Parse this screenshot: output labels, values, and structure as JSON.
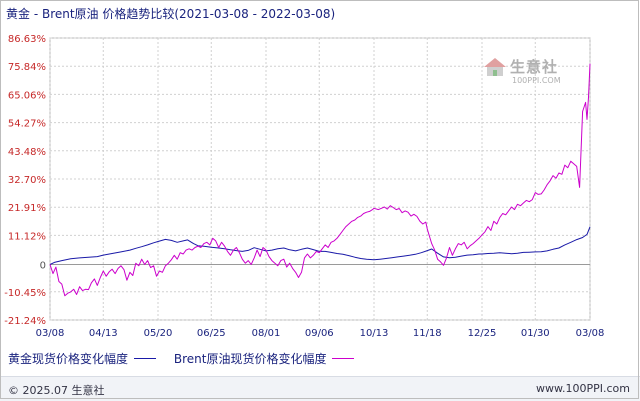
{
  "title": "黄金 - Brent原油 价格趋势比较(2021-03-08 - 2022-03-08)",
  "watermark": {
    "name": "生意社",
    "url": "100PPI.COM"
  },
  "footer": {
    "copyright": "© 2025.07 生意社",
    "website": "www.100PPI.com"
  },
  "chart_data": {
    "type": "line",
    "title": "黄金 - Brent原油 价格趋势比较(2021-03-08 - 2022-03-08)",
    "ylim": [
      -21.24,
      86.63
    ],
    "y_ticks": [
      "86.63%",
      "75.84%",
      "65.06%",
      "54.27%",
      "43.48%",
      "32.70%",
      "21.91%",
      "11.12%",
      "0",
      "-10.45%",
      "-21.24%"
    ],
    "y_tick_values": [
      86.63,
      75.84,
      65.06,
      54.27,
      43.48,
      32.7,
      21.91,
      11.12,
      0,
      -10.45,
      -21.24
    ],
    "x_ticks": [
      "03/08",
      "04/13",
      "05/20",
      "06/25",
      "08/01",
      "09/06",
      "10/13",
      "11/18",
      "12/25",
      "01/30",
      "03/08"
    ],
    "x_tick_days": [
      0,
      36,
      73,
      109,
      146,
      182,
      219,
      255,
      292,
      328,
      365
    ],
    "grid": true,
    "legend_position": "bottom",
    "series": [
      {
        "name": "黄金现货价格变化幅度",
        "color": "#1a1aa8",
        "points": [
          [
            0,
            0
          ],
          [
            3,
            0.8
          ],
          [
            8,
            1.5
          ],
          [
            14,
            2.2
          ],
          [
            20,
            2.5
          ],
          [
            26,
            2.8
          ],
          [
            32,
            3.0
          ],
          [
            36,
            3.6
          ],
          [
            42,
            4.2
          ],
          [
            48,
            4.8
          ],
          [
            54,
            5.5
          ],
          [
            58,
            6.2
          ],
          [
            62,
            6.8
          ],
          [
            66,
            7.5
          ],
          [
            70,
            8.3
          ],
          [
            73,
            8.8
          ],
          [
            78,
            9.6
          ],
          [
            82,
            9.2
          ],
          [
            86,
            8.5
          ],
          [
            90,
            9.0
          ],
          [
            93,
            9.4
          ],
          [
            97,
            8.0
          ],
          [
            100,
            7.2
          ],
          [
            104,
            7.0
          ],
          [
            109,
            6.6
          ],
          [
            114,
            6.3
          ],
          [
            118,
            6.0
          ],
          [
            122,
            5.6
          ],
          [
            126,
            5.3
          ],
          [
            130,
            5.0
          ],
          [
            134,
            5.4
          ],
          [
            138,
            6.4
          ],
          [
            142,
            5.8
          ],
          [
            146,
            5.2
          ],
          [
            150,
            5.5
          ],
          [
            154,
            6.0
          ],
          [
            158,
            6.3
          ],
          [
            162,
            5.6
          ],
          [
            166,
            5.2
          ],
          [
            170,
            5.8
          ],
          [
            174,
            6.3
          ],
          [
            178,
            5.7
          ],
          [
            182,
            5.0
          ],
          [
            186,
            5.0
          ],
          [
            190,
            4.6
          ],
          [
            194,
            4.2
          ],
          [
            198,
            3.9
          ],
          [
            202,
            3.4
          ],
          [
            206,
            2.8
          ],
          [
            210,
            2.3
          ],
          [
            214,
            2.0
          ],
          [
            219,
            1.8
          ],
          [
            223,
            2.0
          ],
          [
            227,
            2.3
          ],
          [
            231,
            2.6
          ],
          [
            235,
            2.9
          ],
          [
            239,
            3.2
          ],
          [
            243,
            3.5
          ],
          [
            247,
            3.9
          ],
          [
            251,
            4.5
          ],
          [
            255,
            5.3
          ],
          [
            258,
            5.9
          ],
          [
            262,
            4.3
          ],
          [
            266,
            2.9
          ],
          [
            270,
            2.6
          ],
          [
            274,
            2.8
          ],
          [
            278,
            3.2
          ],
          [
            282,
            3.6
          ],
          [
            286,
            3.7
          ],
          [
            290,
            4.0
          ],
          [
            292,
            4.0
          ],
          [
            296,
            4.2
          ],
          [
            300,
            4.3
          ],
          [
            304,
            4.5
          ],
          [
            308,
            4.3
          ],
          [
            312,
            4.1
          ],
          [
            316,
            4.3
          ],
          [
            320,
            4.6
          ],
          [
            324,
            4.7
          ],
          [
            328,
            4.8
          ],
          [
            332,
            4.9
          ],
          [
            336,
            5.2
          ],
          [
            340,
            5.8
          ],
          [
            344,
            6.3
          ],
          [
            348,
            7.5
          ],
          [
            352,
            8.5
          ],
          [
            356,
            9.5
          ],
          [
            360,
            10.3
          ],
          [
            363,
            11.5
          ],
          [
            365,
            14.4
          ]
        ]
      },
      {
        "name": "Brent原油现货价格变化幅度",
        "color": "#cc00cc",
        "points": [
          [
            0,
            0
          ],
          [
            2,
            -3.5
          ],
          [
            4,
            -1.0
          ],
          [
            6,
            -6.5
          ],
          [
            8,
            -7.5
          ],
          [
            10,
            -12.0
          ],
          [
            12,
            -11.0
          ],
          [
            14,
            -10.5
          ],
          [
            16,
            -9.5
          ],
          [
            18,
            -11.5
          ],
          [
            20,
            -8.5
          ],
          [
            22,
            -10.0
          ],
          [
            24,
            -9.5
          ],
          [
            26,
            -9.6
          ],
          [
            28,
            -7.0
          ],
          [
            30,
            -5.5
          ],
          [
            32,
            -8.0
          ],
          [
            34,
            -5.0
          ],
          [
            36,
            -2.5
          ],
          [
            38,
            -4.5
          ],
          [
            40,
            -2.8
          ],
          [
            42,
            -1.8
          ],
          [
            44,
            -3.5
          ],
          [
            46,
            -1.5
          ],
          [
            48,
            -0.5
          ],
          [
            50,
            -2.0
          ],
          [
            52,
            -6.0
          ],
          [
            54,
            -3.0
          ],
          [
            56,
            -4.2
          ],
          [
            58,
            0.5
          ],
          [
            60,
            -0.5
          ],
          [
            62,
            2.0
          ],
          [
            64,
            0.0
          ],
          [
            66,
            1.5
          ],
          [
            68,
            -1.2
          ],
          [
            70,
            -0.5
          ],
          [
            72,
            -4.5
          ],
          [
            74,
            -2.5
          ],
          [
            76,
            -3.0
          ],
          [
            78,
            -0.5
          ],
          [
            80,
            0.5
          ],
          [
            82,
            1.8
          ],
          [
            84,
            3.5
          ],
          [
            86,
            2.0
          ],
          [
            88,
            4.5
          ],
          [
            90,
            4.0
          ],
          [
            92,
            5.5
          ],
          [
            94,
            6.0
          ],
          [
            96,
            5.5
          ],
          [
            98,
            6.5
          ],
          [
            100,
            7.0
          ],
          [
            102,
            6.5
          ],
          [
            104,
            8.0
          ],
          [
            106,
            8.5
          ],
          [
            108,
            7.5
          ],
          [
            110,
            10.0
          ],
          [
            112,
            9.0
          ],
          [
            114,
            6.5
          ],
          [
            116,
            8.5
          ],
          [
            118,
            7.0
          ],
          [
            120,
            5.0
          ],
          [
            122,
            3.5
          ],
          [
            124,
            5.5
          ],
          [
            126,
            6.5
          ],
          [
            128,
            4.5
          ],
          [
            130,
            2.0
          ],
          [
            132,
            0.5
          ],
          [
            134,
            1.5
          ],
          [
            136,
            0.0
          ],
          [
            138,
            2.5
          ],
          [
            140,
            5.5
          ],
          [
            142,
            3.0
          ],
          [
            144,
            6.5
          ],
          [
            146,
            5.5
          ],
          [
            148,
            3.0
          ],
          [
            150,
            1.5
          ],
          [
            152,
            0.5
          ],
          [
            154,
            -0.5
          ],
          [
            156,
            1.5
          ],
          [
            158,
            2.0
          ],
          [
            160,
            -1.0
          ],
          [
            162,
            0.5
          ],
          [
            164,
            -1.5
          ],
          [
            166,
            -3.0
          ],
          [
            168,
            -5.0
          ],
          [
            170,
            -3.0
          ],
          [
            172,
            2.5
          ],
          [
            174,
            4.0
          ],
          [
            176,
            2.5
          ],
          [
            178,
            3.5
          ],
          [
            180,
            5.0
          ],
          [
            182,
            4.5
          ],
          [
            184,
            6.0
          ],
          [
            186,
            7.5
          ],
          [
            188,
            6.5
          ],
          [
            190,
            8.5
          ],
          [
            192,
            9.0
          ],
          [
            194,
            10.0
          ],
          [
            196,
            11.5
          ],
          [
            198,
            13.0
          ],
          [
            200,
            14.5
          ],
          [
            202,
            15.5
          ],
          [
            204,
            16.5
          ],
          [
            206,
            17.0
          ],
          [
            208,
            18.0
          ],
          [
            210,
            18.5
          ],
          [
            212,
            19.5
          ],
          [
            214,
            20.0
          ],
          [
            216,
            20.3
          ],
          [
            218,
            21.0
          ],
          [
            219,
            21.5
          ],
          [
            222,
            21.0
          ],
          [
            224,
            21.5
          ],
          [
            226,
            22.0
          ],
          [
            228,
            21.2
          ],
          [
            230,
            22.5
          ],
          [
            232,
            21.8
          ],
          [
            234,
            21.0
          ],
          [
            236,
            21.4
          ],
          [
            238,
            19.8
          ],
          [
            240,
            20.5
          ],
          [
            242,
            20.0
          ],
          [
            244,
            18.5
          ],
          [
            246,
            19.2
          ],
          [
            248,
            18.4
          ],
          [
            250,
            16.5
          ],
          [
            252,
            15.5
          ],
          [
            254,
            16.2
          ],
          [
            255,
            13.5
          ],
          [
            258,
            8.0
          ],
          [
            260,
            5.5
          ],
          [
            262,
            2.0
          ],
          [
            264,
            1.0
          ],
          [
            266,
            -0.3
          ],
          [
            268,
            2.5
          ],
          [
            270,
            6.5
          ],
          [
            272,
            3.5
          ],
          [
            274,
            6.0
          ],
          [
            276,
            8.0
          ],
          [
            278,
            7.5
          ],
          [
            280,
            8.5
          ],
          [
            282,
            6.0
          ],
          [
            284,
            7.2
          ],
          [
            286,
            8.0
          ],
          [
            288,
            9.0
          ],
          [
            290,
            10.0
          ],
          [
            292,
            11.3
          ],
          [
            294,
            12.5
          ],
          [
            296,
            14.5
          ],
          [
            298,
            13.0
          ],
          [
            300,
            16.5
          ],
          [
            302,
            15.5
          ],
          [
            304,
            18.0
          ],
          [
            306,
            19.5
          ],
          [
            308,
            19.0
          ],
          [
            310,
            20.5
          ],
          [
            312,
            22.0
          ],
          [
            314,
            21.0
          ],
          [
            316,
            23.0
          ],
          [
            318,
            22.5
          ],
          [
            320,
            23.5
          ],
          [
            322,
            24.5
          ],
          [
            324,
            24.0
          ],
          [
            326,
            24.8
          ],
          [
            328,
            27.5
          ],
          [
            330,
            26.8
          ],
          [
            332,
            27.0
          ],
          [
            334,
            28.5
          ],
          [
            336,
            30.5
          ],
          [
            338,
            32.0
          ],
          [
            340,
            34.0
          ],
          [
            342,
            33.0
          ],
          [
            344,
            35.0
          ],
          [
            346,
            34.5
          ],
          [
            348,
            38.0
          ],
          [
            350,
            37.0
          ],
          [
            352,
            39.5
          ],
          [
            354,
            38.5
          ],
          [
            356,
            37.5
          ],
          [
            358,
            29.5
          ],
          [
            360,
            58.5
          ],
          [
            362,
            62.0
          ],
          [
            363,
            55.5
          ],
          [
            364,
            64.0
          ],
          [
            365,
            76.8
          ]
        ]
      }
    ]
  }
}
